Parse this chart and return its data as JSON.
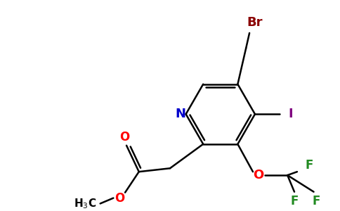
{
  "background_color": "#ffffff",
  "figsize": [
    4.84,
    3.0
  ],
  "dpi": 100,
  "line_color": "#000000",
  "line_width": 1.8,
  "atom_colors": {
    "N": "#0000cc",
    "Br": "#8b0000",
    "I": "#800080",
    "O": "#ff0000",
    "F": "#228b22",
    "C": "#000000"
  }
}
